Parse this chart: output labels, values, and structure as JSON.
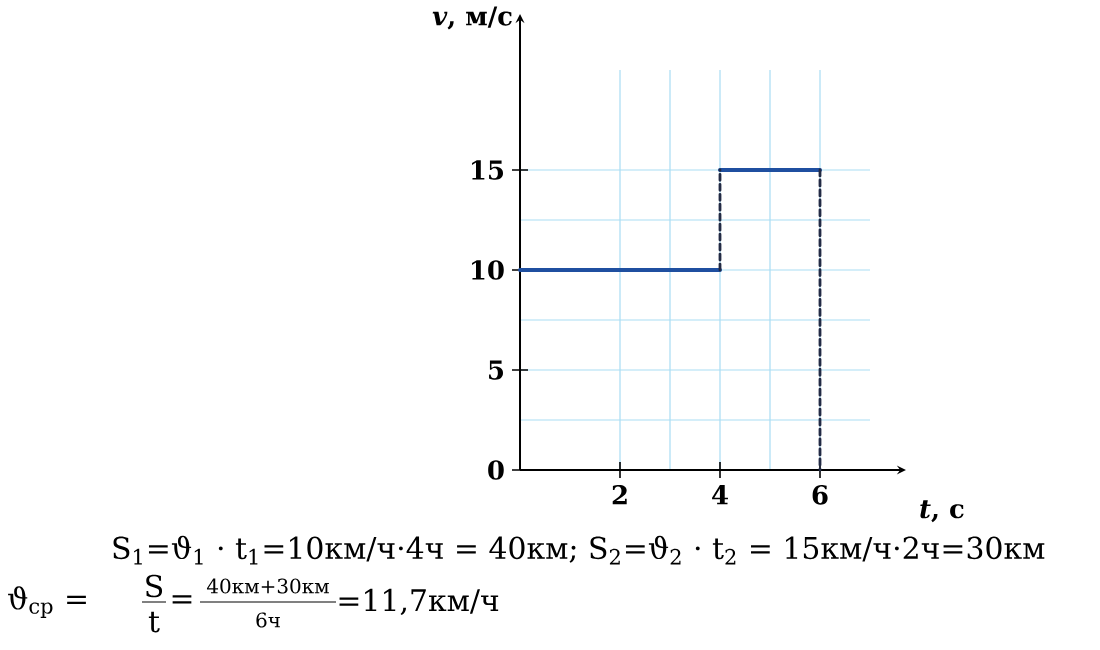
{
  "chart_data": {
    "type": "line",
    "xlabel": "*t*, с",
    "ylabel": "*v*, м/с",
    "xlim": [
      0,
      7
    ],
    "ylim": [
      0,
      20
    ],
    "xticks": [
      2,
      4,
      6
    ],
    "yticks": [
      0,
      5,
      10,
      15
    ],
    "grid": true,
    "marker": "none",
    "series": [
      {
        "color": "#1f4fa0",
        "x": [
          0,
          4
        ],
        "values": [
          10,
          10
        ],
        "line_style": "solid"
      },
      {
        "color": "#1f4fa0",
        "x": [
          4,
          6
        ],
        "values": [
          15,
          15
        ],
        "line_style": "solid"
      },
      {
        "color": "#222a44",
        "x": [
          4,
          4
        ],
        "values": [
          10,
          15
        ],
        "line_style": "dashed"
      },
      {
        "color": "#222a44",
        "x": [
          6,
          6
        ],
        "values": [
          15,
          0
        ],
        "line_style": "dashed"
      }
    ],
    "annotations": [
      "S$_{1}$=ϑ$_{1}$ · t$_{1}$=10км/ч·4ч = 40км;   S$_{2}$=ϑ$_{2}$ · t$_{2}$ = 15км/ч·2ч=30км",
      "ϑ$_{ср}$ =",
      "S",
      "t",
      "=",
      "40км+30км",
      "6ч",
      "=11,7км/ч"
    ]
  }
}
